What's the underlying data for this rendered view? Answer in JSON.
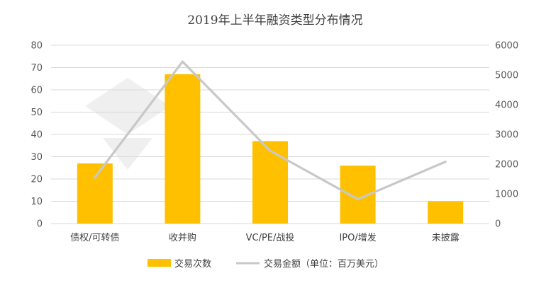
{
  "chart_data": {
    "type": "bar",
    "title": "2019年上半年融资类型分布情况",
    "categories": [
      "债权/可转债",
      "收并购",
      "VC/PE/战投",
      "IPO/增发",
      "未披露"
    ],
    "series": [
      {
        "name": "交易次数",
        "type": "bar",
        "axis": "left",
        "color": "#FFC000",
        "values": [
          27,
          67,
          37,
          26,
          10
        ]
      },
      {
        "name": "交易金额（单位：百万美元）",
        "type": "line",
        "axis": "right",
        "color": "#C8C8C8",
        "values": [
          1550,
          5450,
          2450,
          820,
          2080
        ]
      }
    ],
    "y_left": {
      "min": 0,
      "max": 80,
      "ticks": [
        0,
        10,
        20,
        30,
        40,
        50,
        60,
        70,
        80
      ]
    },
    "y_right": {
      "min": 0,
      "max": 6000,
      "ticks": [
        0,
        1000,
        2000,
        3000,
        4000,
        5000,
        6000
      ]
    },
    "grid": true,
    "legend_position": "bottom"
  }
}
